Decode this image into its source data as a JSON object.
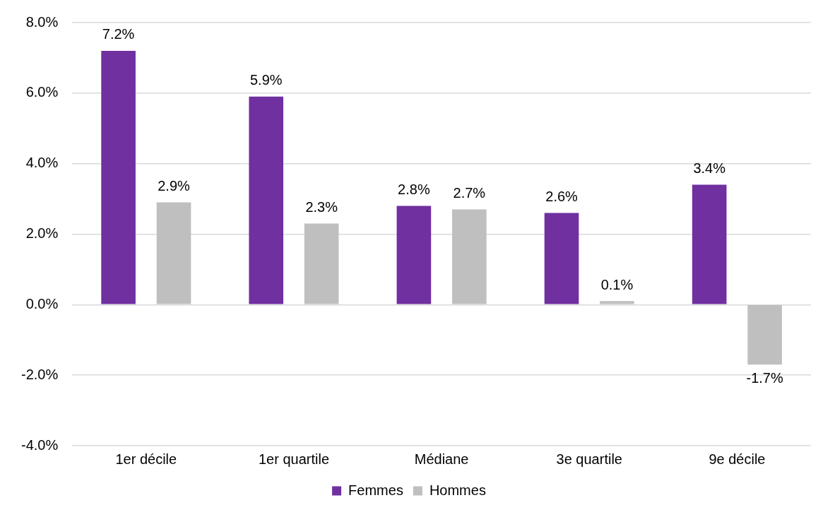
{
  "chart_data": {
    "type": "bar",
    "categories": [
      "1er décile",
      "1er quartile",
      "Médiane",
      "3e quartile",
      "9e décile"
    ],
    "series": [
      {
        "name": "Femmes",
        "color": "#7030a0",
        "values": [
          7.2,
          5.9,
          2.8,
          2.6,
          3.4
        ],
        "value_labels": [
          "7.2%",
          "5.9%",
          "2.8%",
          "2.6%",
          "3.4%"
        ]
      },
      {
        "name": "Hommes",
        "color": "#bfbfbf",
        "values": [
          2.9,
          2.3,
          2.7,
          0.1,
          -1.7
        ],
        "value_labels": [
          "2.9%",
          "2.3%",
          "2.7%",
          "0.1%",
          "-1.7%"
        ]
      }
    ],
    "ylim": [
      -4,
      8
    ],
    "yticks": [
      {
        "value": -4,
        "label": "-4.0%"
      },
      {
        "value": -2,
        "label": "-2.0%"
      },
      {
        "value": 0,
        "label": "0.0%"
      },
      {
        "value": 2,
        "label": "2.0%"
      },
      {
        "value": 4,
        "label": "4.0%"
      },
      {
        "value": 6,
        "label": "6.0%"
      },
      {
        "value": 8,
        "label": "8.0%"
      }
    ],
    "grid": "y",
    "legend": "bottom"
  }
}
